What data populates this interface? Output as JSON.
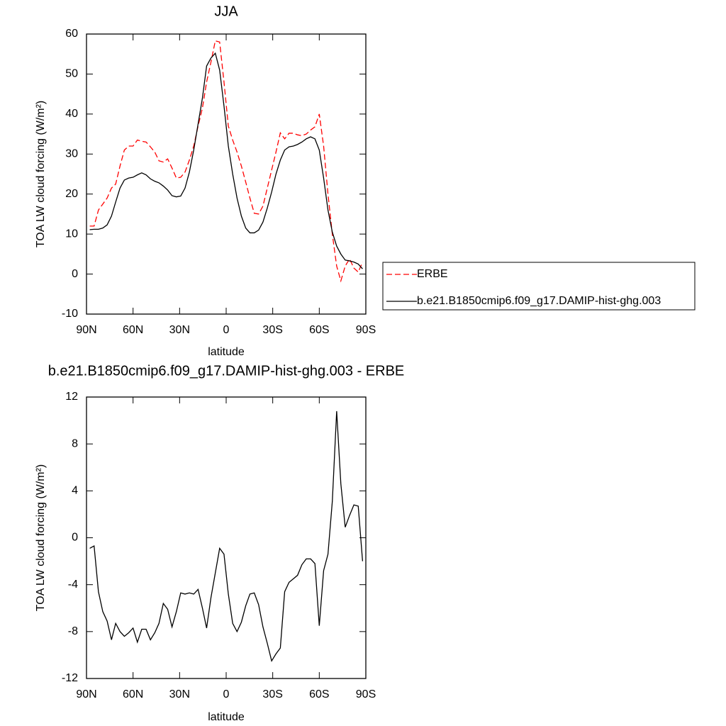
{
  "chart_data": [
    {
      "type": "line",
      "title": "JJA",
      "xlabel": "latitude",
      "ylabel": "TOA LW cloud forcing (W/m²)",
      "x": [
        87.9,
        85.1,
        82.3,
        79.5,
        76.7,
        73.9,
        71.2,
        68.4,
        65.6,
        62.8,
        60.0,
        57.2,
        54.4,
        51.6,
        48.8,
        46.0,
        43.3,
        40.5,
        37.7,
        34.9,
        32.1,
        29.3,
        26.5,
        23.7,
        20.9,
        18.1,
        15.3,
        12.6,
        9.8,
        7.0,
        4.2,
        1.4,
        -1.4,
        -4.2,
        -7.0,
        -9.8,
        -12.6,
        -15.3,
        -18.1,
        -20.9,
        -23.7,
        -26.5,
        -29.3,
        -32.1,
        -34.9,
        -37.7,
        -40.5,
        -43.3,
        -46.0,
        -48.8,
        -51.6,
        -54.4,
        -57.2,
        -60.0,
        -62.8,
        -65.6,
        -68.4,
        -71.2,
        -73.9,
        -76.7,
        -79.5,
        -82.3,
        -85.1,
        -87.9
      ],
      "series": [
        {
          "name": "ERBE",
          "color": "#ff0000",
          "dashed": true,
          "values": [
            12,
            12,
            16,
            17.5,
            19,
            21.5,
            22.5,
            27,
            31,
            32,
            32,
            33.5,
            33.2,
            33,
            31.8,
            30.5,
            28.3,
            28,
            28.8,
            26.5,
            24,
            24.2,
            25.5,
            28.5,
            32,
            37,
            41.5,
            48,
            53,
            58.3,
            58,
            48,
            37,
            33.5,
            30.5,
            27,
            23,
            19,
            15.2,
            15,
            17,
            21.5,
            26,
            30.5,
            35.3,
            33.8,
            35.2,
            35.2,
            34.8,
            34.6,
            35,
            36,
            36.8,
            40,
            32,
            20,
            10,
            2,
            -1.7,
            2,
            3.8,
            1.5,
            0.5,
            3
          ]
        },
        {
          "name": "b.e21.B1850cmip6.f09_g17.DAMIP-hist-ghg.003",
          "color": "#000000",
          "dashed": false,
          "values": [
            11.1,
            11.2,
            11.2,
            11.5,
            12.3,
            14.5,
            18,
            21.5,
            23.5,
            24,
            24.2,
            24.8,
            25.3,
            24.8,
            23.8,
            23.2,
            22.8,
            22,
            21,
            19.6,
            19.3,
            19.5,
            21.5,
            25.5,
            31,
            37.5,
            44,
            52,
            54,
            55.2,
            51,
            42,
            32,
            25,
            19,
            14.5,
            11.5,
            10.3,
            10.3,
            11,
            13,
            16.5,
            20.5,
            25,
            28.5,
            31,
            31.8,
            32,
            32.4,
            33,
            33.8,
            34.3,
            33.8,
            31,
            24,
            16,
            10.5,
            7,
            5,
            3.5,
            3.3,
            3,
            2.5,
            1.3
          ]
        }
      ],
      "xlim": [
        90,
        -90
      ],
      "xticks": [
        {
          "value": 90,
          "label": "90N"
        },
        {
          "value": 60,
          "label": "60N"
        },
        {
          "value": 30,
          "label": "30N"
        },
        0,
        {
          "value": -30,
          "label": "30S"
        },
        {
          "value": -60,
          "label": "60S"
        },
        {
          "value": -90,
          "label": "90S"
        }
      ],
      "ylim": [
        -10,
        60
      ],
      "yticks": [
        -10,
        0,
        10,
        20,
        30,
        40,
        50,
        60
      ],
      "legend": "right"
    },
    {
      "type": "line",
      "title": "b.e21.B1850cmip6.f09_g17.DAMIP-hist-ghg.003 - ERBE",
      "xlabel": "latitude",
      "ylabel": "TOA LW cloud forcing (W/m²)",
      "x": [
        87.9,
        85.1,
        82.3,
        79.5,
        76.7,
        73.9,
        71.2,
        68.4,
        65.6,
        62.8,
        60.0,
        57.2,
        54.4,
        51.6,
        48.8,
        46.0,
        43.3,
        40.5,
        37.7,
        34.9,
        32.1,
        29.3,
        26.5,
        23.7,
        20.9,
        18.1,
        15.3,
        12.6,
        9.8,
        7.0,
        4.2,
        1.4,
        -1.4,
        -4.2,
        -7.0,
        -9.8,
        -12.6,
        -15.3,
        -18.1,
        -20.9,
        -23.7,
        -26.5,
        -29.3,
        -32.1,
        -34.9,
        -37.7,
        -40.5,
        -43.3,
        -46.0,
        -48.8,
        -51.6,
        -54.4,
        -57.2,
        -60.0,
        -62.8,
        -65.6,
        -68.4,
        -71.2,
        -73.9,
        -76.7,
        -79.5,
        -82.3,
        -85.1,
        -87.9
      ],
      "color": "#000000",
      "values": [
        -0.9,
        -0.7,
        -4.6,
        -6.3,
        -7.1,
        -8.7,
        -7.3,
        -8.0,
        -8.4,
        -8.1,
        -7.7,
        -8.9,
        -7.8,
        -7.8,
        -8.7,
        -8.1,
        -7.3,
        -5.6,
        -6.1,
        -7.6,
        -6.3,
        -4.7,
        -4.8,
        -4.7,
        -4.8,
        -4.4,
        -6.0,
        -7.7,
        -5.1,
        -3.0,
        -0.9,
        -1.4,
        -4.8,
        -7.3,
        -8.0,
        -7.2,
        -5.8,
        -4.8,
        -4.7,
        -5.7,
        -7.6,
        -9.0,
        -10.5,
        -9.9,
        -9.4,
        -4.6,
        -3.8,
        -3.5,
        -3.2,
        -2.3,
        -1.8,
        -1.8,
        -2.2,
        -7.5,
        -2.8,
        -1.4,
        3.1,
        10.8,
        4.6,
        0.9,
        1.9,
        2.8,
        2.7,
        -2.0
      ],
      "xlim": [
        90,
        -90
      ],
      "xticks": [
        {
          "value": 90,
          "label": "90N"
        },
        {
          "value": 60,
          "label": "60N"
        },
        {
          "value": 30,
          "label": "30N"
        },
        0,
        {
          "value": -30,
          "label": "30S"
        },
        {
          "value": -60,
          "label": "60S"
        },
        {
          "value": -90,
          "label": "90S"
        }
      ],
      "ylim": [
        -12,
        12
      ],
      "yticks": [
        -12,
        -8,
        -4,
        0,
        4,
        8,
        12
      ]
    }
  ]
}
